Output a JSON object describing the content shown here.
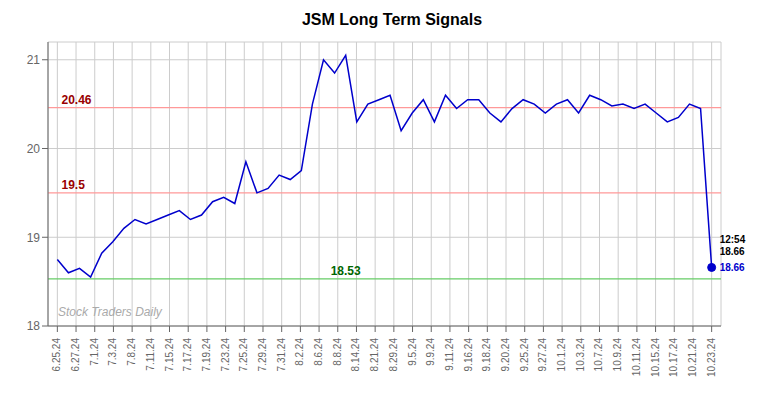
{
  "chart_data": {
    "type": "line",
    "title": "JSM Long Term Signals",
    "x": [
      0,
      0.59322,
      1.186441,
      1.779661,
      2.372881,
      2.966102,
      3.559322,
      4.152542,
      4.745763,
      5.338983,
      5.932203,
      6.525424,
      7.118644,
      7.711864,
      8.305085,
      8.898305,
      9.491525,
      10.084746,
      10.677966,
      11.271186,
      11.864407,
      12.457627,
      13.050847,
      13.644068,
      14.237288,
      14.830508,
      15.423729,
      16.016949,
      16.610169,
      17.20339,
      17.79661,
      18.389831,
      18.983051,
      19.576271,
      20.169492,
      20.762712,
      21.355932,
      21.949153,
      22.542373,
      23.135593,
      23.728814,
      24.322034,
      24.915254,
      25.508475,
      26.101695,
      26.694915,
      27.288136,
      27.881356,
      28.474576,
      29.067797,
      29.661017,
      30.254237,
      30.847458,
      31.440678,
      32.033898,
      32.627119,
      33.220339,
      33.813559,
      34.40678,
      35
    ],
    "values": [
      18.75,
      18.6,
      18.65,
      18.55,
      18.82,
      18.95,
      19.1,
      19.2,
      19.15,
      19.2,
      19.25,
      19.3,
      19.2,
      19.25,
      19.4,
      19.45,
      19.38,
      19.85,
      19.5,
      19.55,
      19.7,
      19.65,
      19.75,
      20.5,
      21.0,
      20.85,
      21.05,
      20.3,
      20.5,
      20.55,
      20.6,
      20.2,
      20.4,
      20.55,
      20.3,
      20.6,
      20.45,
      20.55,
      20.55,
      20.4,
      20.3,
      20.45,
      20.55,
      20.5,
      20.4,
      20.5,
      20.55,
      20.4,
      20.6,
      20.55,
      20.48,
      20.5,
      20.45,
      20.5,
      20.4,
      20.3,
      20.35,
      20.5,
      20.45,
      18.66
    ],
    "color": "#0000cc",
    "xlim": [
      -0.5,
      35.5
    ],
    "xticks": [
      {
        "value": 0,
        "label": "6.25.24"
      },
      {
        "value": 1,
        "label": "6.27.24"
      },
      {
        "value": 2,
        "label": "7.1.24"
      },
      {
        "value": 3,
        "label": "7.3.24"
      },
      {
        "value": 4,
        "label": "7.8.24"
      },
      {
        "value": 5,
        "label": "7.11.24"
      },
      {
        "value": 6,
        "label": "7.15.24"
      },
      {
        "value": 7,
        "label": "7.17.24"
      },
      {
        "value": 8,
        "label": "7.19.24"
      },
      {
        "value": 9,
        "label": "7.23.24"
      },
      {
        "value": 10,
        "label": "7.25.24"
      },
      {
        "value": 11,
        "label": "7.29.24"
      },
      {
        "value": 12,
        "label": "7.31.24"
      },
      {
        "value": 13,
        "label": "8.2.24"
      },
      {
        "value": 14,
        "label": "8.6.24"
      },
      {
        "value": 15,
        "label": "8.8.24"
      },
      {
        "value": 16,
        "label": "8.14.24"
      },
      {
        "value": 17,
        "label": "8.21.24"
      },
      {
        "value": 18,
        "label": "8.29.24"
      },
      {
        "value": 19,
        "label": "9.5.24"
      },
      {
        "value": 20,
        "label": "9.9.24"
      },
      {
        "value": 21,
        "label": "9.11.24"
      },
      {
        "value": 22,
        "label": "9.16.24"
      },
      {
        "value": 23,
        "label": "9.18.24"
      },
      {
        "value": 24,
        "label": "9.20.24"
      },
      {
        "value": 25,
        "label": "9.25.24"
      },
      {
        "value": 26,
        "label": "9.27.24"
      },
      {
        "value": 27,
        "label": "10.1.24"
      },
      {
        "value": 28,
        "label": "10.3.24"
      },
      {
        "value": 29,
        "label": "10.7.24"
      },
      {
        "value": 30,
        "label": "10.9.24"
      },
      {
        "value": 31,
        "label": "10.11.24"
      },
      {
        "value": 32,
        "label": "10.15.24"
      },
      {
        "value": 33,
        "label": "10.17.24"
      },
      {
        "value": 34,
        "label": "10.21.24"
      },
      {
        "value": 35,
        "label": "10.23.24"
      }
    ],
    "ylim": [
      18.0,
      21.2
    ],
    "yticks": [
      18,
      19,
      20,
      21
    ],
    "grid": true,
    "hlines": [
      {
        "value": 20.46,
        "color": "#ff9999",
        "label": "20.46",
        "label_color": "#990000"
      },
      {
        "value": 19.5,
        "color": "#ff9999",
        "label": "19.5",
        "label_color": "#990000"
      },
      {
        "value": 18.53,
        "color": "#66cc66",
        "label": "18.53",
        "label_color": "#006600"
      }
    ],
    "last_point": {
      "time_label": "12:54",
      "price_label": "18.66",
      "price_color": "#0000cc",
      "dot_color": "#0000cc"
    },
    "watermark": "Stock Traders Daily"
  }
}
